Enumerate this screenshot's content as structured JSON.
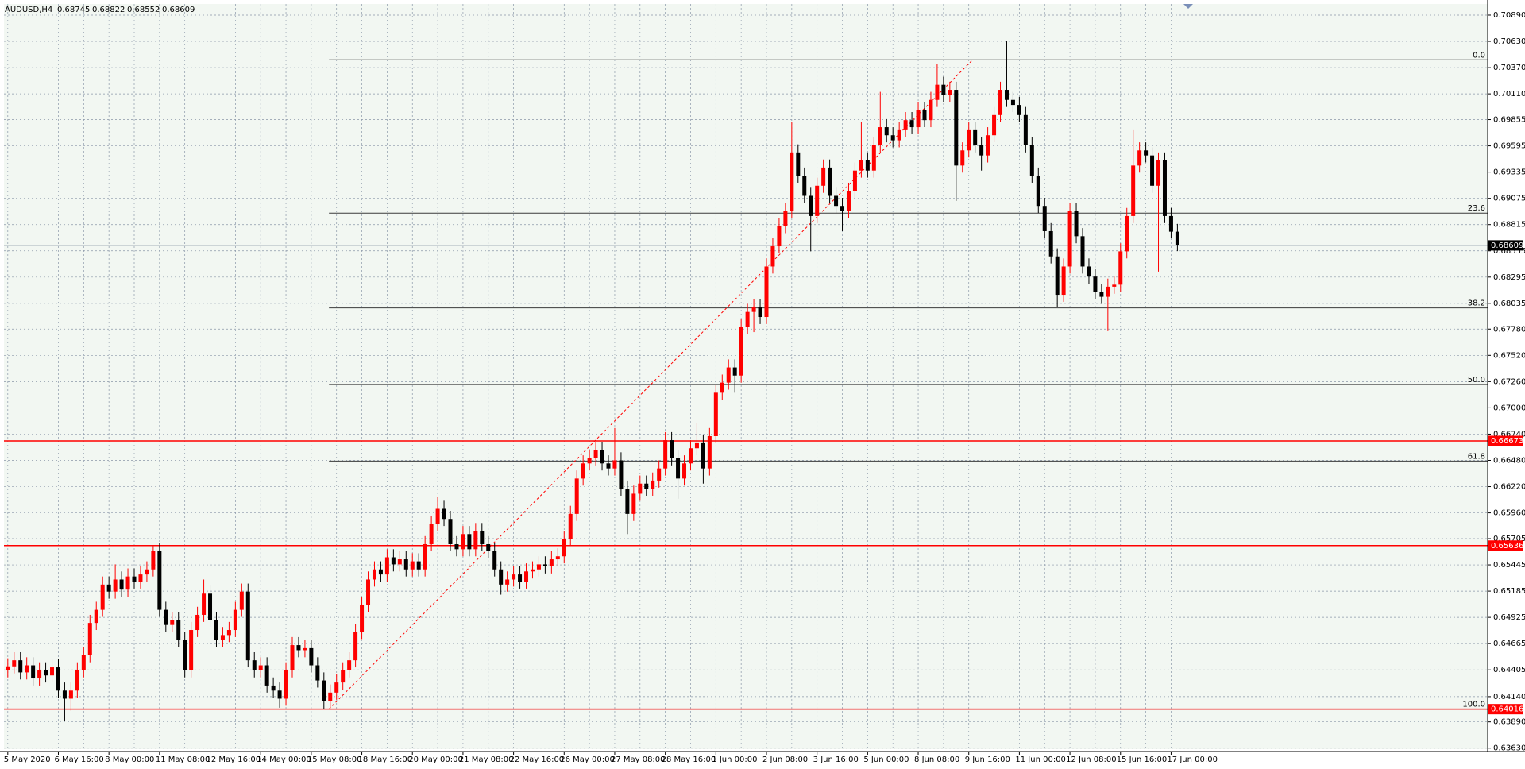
{
  "chart_data": {
    "type": "candlestick",
    "symbol": "AUDUSD,H4",
    "background": "#f2f7f2",
    "grid": true,
    "grid_color": "#8a97a8",
    "bull_color": "#ff0000",
    "bear_color": "#000000",
    "categories": [
      "5 May 2020",
      null,
      null,
      null,
      null,
      null,
      null,
      null,
      "6 May 16:00",
      null,
      null,
      null,
      null,
      null,
      null,
      null,
      "8 May 00:00",
      null,
      null,
      null,
      null,
      null,
      null,
      null,
      "11 May 08:00",
      null,
      null,
      null,
      null,
      null,
      null,
      null,
      "12 May 16:00",
      null,
      null,
      null,
      null,
      null,
      null,
      null,
      "14 May 00:00",
      null,
      null,
      null,
      null,
      null,
      null,
      null,
      "15 May 08:00",
      null,
      null,
      null,
      null,
      null,
      null,
      null,
      "18 May 16:00",
      null,
      null,
      null,
      null,
      null,
      null,
      null,
      "20 May 00:00",
      null,
      null,
      null,
      null,
      null,
      null,
      null,
      "21 May 08:00",
      null,
      null,
      null,
      null,
      null,
      null,
      null,
      "22 May 16:00",
      null,
      null,
      null,
      null,
      null,
      null,
      null,
      "26 May 00:00",
      null,
      null,
      null,
      null,
      null,
      null,
      null,
      "27 May 08:00",
      null,
      null,
      null,
      null,
      null,
      null,
      null,
      "28 May 16:00",
      null,
      null,
      null,
      null,
      null,
      null,
      null,
      "1 Jun 00:00",
      null,
      null,
      null,
      null,
      null,
      null,
      null,
      "2 Jun 08:00",
      null,
      null,
      null,
      null,
      null,
      null,
      null,
      "3 Jun 16:00",
      null,
      null,
      null,
      null,
      null,
      null,
      null,
      "5 Jun 00:00",
      null,
      null,
      null,
      null,
      null,
      null,
      null,
      "8 Jun 08:00",
      null,
      null,
      null,
      null,
      null,
      null,
      null,
      "9 Jun 16:00",
      null,
      null,
      null,
      null,
      null,
      null,
      null,
      "11 Jun 00:00",
      null,
      null,
      null,
      null,
      null,
      null,
      null,
      "12 Jun 08:00",
      null,
      null,
      null,
      null,
      null,
      null,
      null,
      "15 Jun 16:00",
      null,
      null,
      null,
      null,
      null,
      null,
      null,
      "17 Jun 00:00",
      null
    ],
    "ohlc": [
      [
        0.644,
        0.6452,
        0.6433,
        0.6444
      ],
      [
        0.6444,
        0.6458,
        0.6437,
        0.645
      ],
      [
        0.645,
        0.6458,
        0.6431,
        0.6438
      ],
      [
        0.6438,
        0.6453,
        0.6431,
        0.6445
      ],
      [
        0.6445,
        0.6453,
        0.6425,
        0.6432
      ],
      [
        0.6432,
        0.6448,
        0.6425,
        0.644
      ],
      [
        0.644,
        0.6448,
        0.6428,
        0.6435
      ],
      [
        0.6435,
        0.6451,
        0.6428,
        0.6443
      ],
      [
        0.6443,
        0.6451,
        0.6413,
        0.642
      ],
      [
        0.642,
        0.6428,
        0.639,
        0.6412
      ],
      [
        0.6412,
        0.6428,
        0.64,
        0.642
      ],
      [
        0.642,
        0.6448,
        0.6413,
        0.644
      ],
      [
        0.644,
        0.6463,
        0.6433,
        0.6455
      ],
      [
        0.6455,
        0.6495,
        0.6448,
        0.6487
      ],
      [
        0.6487,
        0.6508,
        0.648,
        0.65
      ],
      [
        0.65,
        0.6533,
        0.6493,
        0.6525
      ],
      [
        0.6525,
        0.6533,
        0.6511,
        0.6518
      ],
      [
        0.6518,
        0.6545,
        0.6511,
        0.653
      ],
      [
        0.653,
        0.6538,
        0.6513,
        0.652
      ],
      [
        0.652,
        0.6541,
        0.6513,
        0.6533
      ],
      [
        0.6533,
        0.6541,
        0.6521,
        0.6528
      ],
      [
        0.6528,
        0.6543,
        0.6521,
        0.6535
      ],
      [
        0.6535,
        0.6548,
        0.6528,
        0.654
      ],
      [
        0.654,
        0.6563,
        0.6533,
        0.6558
      ],
      [
        0.6558,
        0.6566,
        0.6493,
        0.65
      ],
      [
        0.65,
        0.6508,
        0.6478,
        0.6485
      ],
      [
        0.6485,
        0.6498,
        0.6478,
        0.649
      ],
      [
        0.649,
        0.6498,
        0.6463,
        0.647
      ],
      [
        0.647,
        0.6478,
        0.6433,
        0.644
      ],
      [
        0.644,
        0.6488,
        0.6433,
        0.648
      ],
      [
        0.648,
        0.6503,
        0.6473,
        0.6495
      ],
      [
        0.6495,
        0.653,
        0.6488,
        0.6516
      ],
      [
        0.6516,
        0.6524,
        0.6483,
        0.649
      ],
      [
        0.649,
        0.6498,
        0.6463,
        0.647
      ],
      [
        0.647,
        0.6483,
        0.6463,
        0.6475
      ],
      [
        0.6475,
        0.6488,
        0.6468,
        0.648
      ],
      [
        0.648,
        0.6508,
        0.6473,
        0.65
      ],
      [
        0.65,
        0.6526,
        0.6493,
        0.6518
      ],
      [
        0.6518,
        0.6526,
        0.6443,
        0.645
      ],
      [
        0.645,
        0.6458,
        0.6433,
        0.644
      ],
      [
        0.644,
        0.6453,
        0.6433,
        0.6445
      ],
      [
        0.6445,
        0.6453,
        0.6418,
        0.6425
      ],
      [
        0.6425,
        0.6433,
        0.6413,
        0.642
      ],
      [
        0.642,
        0.6428,
        0.6403,
        0.6412
      ],
      [
        0.6412,
        0.6448,
        0.6405,
        0.644
      ],
      [
        0.644,
        0.6473,
        0.6433,
        0.6465
      ],
      [
        0.6465,
        0.6473,
        0.6453,
        0.646
      ],
      [
        0.646,
        0.647,
        0.6453,
        0.6462
      ],
      [
        0.6462,
        0.647,
        0.6438,
        0.6445
      ],
      [
        0.6445,
        0.6453,
        0.6423,
        0.643
      ],
      [
        0.643,
        0.6438,
        0.6402,
        0.641
      ],
      [
        0.641,
        0.6426,
        0.6403,
        0.6418
      ],
      [
        0.6418,
        0.6436,
        0.6411,
        0.6428
      ],
      [
        0.6428,
        0.6448,
        0.6421,
        0.644
      ],
      [
        0.644,
        0.6458,
        0.6433,
        0.645
      ],
      [
        0.645,
        0.6486,
        0.6443,
        0.6478
      ],
      [
        0.6478,
        0.6513,
        0.6471,
        0.6505
      ],
      [
        0.6505,
        0.6538,
        0.6498,
        0.653
      ],
      [
        0.653,
        0.6548,
        0.6523,
        0.654
      ],
      [
        0.654,
        0.6548,
        0.6528,
        0.6535
      ],
      [
        0.6535,
        0.656,
        0.6528,
        0.6552
      ],
      [
        0.6552,
        0.656,
        0.6538,
        0.6545
      ],
      [
        0.6545,
        0.6558,
        0.6538,
        0.655
      ],
      [
        0.655,
        0.6558,
        0.6533,
        0.654
      ],
      [
        0.654,
        0.6556,
        0.6533,
        0.6548
      ],
      [
        0.6548,
        0.6556,
        0.6533,
        0.654
      ],
      [
        0.654,
        0.6573,
        0.6533,
        0.6565
      ],
      [
        0.6565,
        0.6593,
        0.6558,
        0.6585
      ],
      [
        0.6585,
        0.6612,
        0.6578,
        0.66
      ],
      [
        0.66,
        0.6608,
        0.6583,
        0.659
      ],
      [
        0.659,
        0.6598,
        0.6558,
        0.6565
      ],
      [
        0.6565,
        0.6573,
        0.6553,
        0.656
      ],
      [
        0.656,
        0.6583,
        0.6553,
        0.6575
      ],
      [
        0.6575,
        0.6583,
        0.6553,
        0.656
      ],
      [
        0.656,
        0.6586,
        0.6553,
        0.6578
      ],
      [
        0.6578,
        0.6586,
        0.6558,
        0.6565
      ],
      [
        0.6565,
        0.6573,
        0.6551,
        0.6558
      ],
      [
        0.6558,
        0.6566,
        0.6533,
        0.654
      ],
      [
        0.654,
        0.6548,
        0.6515,
        0.6525
      ],
      [
        0.6525,
        0.6538,
        0.6518,
        0.653
      ],
      [
        0.653,
        0.6543,
        0.6523,
        0.6535
      ],
      [
        0.6535,
        0.6543,
        0.6521,
        0.6528
      ],
      [
        0.6528,
        0.6546,
        0.6521,
        0.6538
      ],
      [
        0.6538,
        0.6548,
        0.6531,
        0.654
      ],
      [
        0.654,
        0.6553,
        0.6533,
        0.6545
      ],
      [
        0.6545,
        0.6553,
        0.6536,
        0.6543
      ],
      [
        0.6543,
        0.6558,
        0.6536,
        0.655
      ],
      [
        0.655,
        0.6561,
        0.6543,
        0.6553
      ],
      [
        0.6553,
        0.6578,
        0.6546,
        0.657
      ],
      [
        0.657,
        0.6603,
        0.6563,
        0.6595
      ],
      [
        0.6595,
        0.6638,
        0.6588,
        0.663
      ],
      [
        0.663,
        0.6653,
        0.6623,
        0.6645
      ],
      [
        0.6645,
        0.6658,
        0.6638,
        0.665
      ],
      [
        0.665,
        0.6666,
        0.6643,
        0.6658
      ],
      [
        0.6658,
        0.6666,
        0.6638,
        0.6645
      ],
      [
        0.6645,
        0.6653,
        0.6633,
        0.664
      ],
      [
        0.664,
        0.668,
        0.6633,
        0.6648
      ],
      [
        0.6648,
        0.6656,
        0.6613,
        0.662
      ],
      [
        0.662,
        0.6628,
        0.6575,
        0.6595
      ],
      [
        0.6595,
        0.6623,
        0.6588,
        0.6615
      ],
      [
        0.6615,
        0.6633,
        0.6608,
        0.6625
      ],
      [
        0.6625,
        0.6633,
        0.6613,
        0.662
      ],
      [
        0.662,
        0.6636,
        0.6613,
        0.6628
      ],
      [
        0.6628,
        0.6648,
        0.6621,
        0.664
      ],
      [
        0.664,
        0.6676,
        0.6633,
        0.6668
      ],
      [
        0.6668,
        0.6676,
        0.6643,
        0.665
      ],
      [
        0.665,
        0.6658,
        0.661,
        0.663
      ],
      [
        0.663,
        0.6653,
        0.6623,
        0.6645
      ],
      [
        0.6645,
        0.6668,
        0.6638,
        0.666
      ],
      [
        0.666,
        0.6685,
        0.6653,
        0.6665
      ],
      [
        0.6665,
        0.6673,
        0.6625,
        0.664
      ],
      [
        0.664,
        0.668,
        0.6633,
        0.6672
      ],
      [
        0.6672,
        0.6723,
        0.6665,
        0.6715
      ],
      [
        0.6715,
        0.6733,
        0.6708,
        0.6725
      ],
      [
        0.6725,
        0.6748,
        0.6718,
        0.674
      ],
      [
        0.674,
        0.6748,
        0.6715,
        0.6732
      ],
      [
        0.6732,
        0.6788,
        0.6725,
        0.678
      ],
      [
        0.678,
        0.6803,
        0.6773,
        0.6795
      ],
      [
        0.6795,
        0.6808,
        0.6775,
        0.68
      ],
      [
        0.68,
        0.6808,
        0.6783,
        0.679
      ],
      [
        0.679,
        0.6848,
        0.6783,
        0.684
      ],
      [
        0.684,
        0.6868,
        0.6833,
        0.686
      ],
      [
        0.686,
        0.6888,
        0.6853,
        0.688
      ],
      [
        0.688,
        0.6903,
        0.6873,
        0.6895
      ],
      [
        0.6895,
        0.6983,
        0.6888,
        0.6953
      ],
      [
        0.6953,
        0.6961,
        0.6923,
        0.693
      ],
      [
        0.693,
        0.6938,
        0.6903,
        0.691
      ],
      [
        0.691,
        0.6918,
        0.6855,
        0.689
      ],
      [
        0.689,
        0.6928,
        0.6883,
        0.692
      ],
      [
        0.692,
        0.6946,
        0.6913,
        0.6938
      ],
      [
        0.6938,
        0.6946,
        0.6903,
        0.691
      ],
      [
        0.691,
        0.6918,
        0.6893,
        0.69
      ],
      [
        0.69,
        0.6908,
        0.6875,
        0.6895
      ],
      [
        0.6895,
        0.6923,
        0.6888,
        0.6915
      ],
      [
        0.6915,
        0.6943,
        0.6908,
        0.6935
      ],
      [
        0.6935,
        0.6983,
        0.6928,
        0.6945
      ],
      [
        0.6945,
        0.6953,
        0.6928,
        0.6935
      ],
      [
        0.6935,
        0.6968,
        0.6928,
        0.696
      ],
      [
        0.696,
        0.7013,
        0.6953,
        0.6978
      ],
      [
        0.6978,
        0.6986,
        0.6963,
        0.697
      ],
      [
        0.697,
        0.6978,
        0.6958,
        0.6965
      ],
      [
        0.6965,
        0.6983,
        0.6958,
        0.6975
      ],
      [
        0.6975,
        0.6993,
        0.6968,
        0.6985
      ],
      [
        0.6985,
        0.6993,
        0.6971,
        0.6978
      ],
      [
        0.6978,
        0.7003,
        0.6971,
        0.6995
      ],
      [
        0.6995,
        0.7003,
        0.6978,
        0.6985
      ],
      [
        0.6985,
        0.7013,
        0.6978,
        0.7005
      ],
      [
        0.7005,
        0.7041,
        0.6998,
        0.702
      ],
      [
        0.702,
        0.7028,
        0.7003,
        0.701
      ],
      [
        0.701,
        0.7023,
        0.7003,
        0.7015
      ],
      [
        0.7015,
        0.7023,
        0.6905,
        0.694
      ],
      [
        0.694,
        0.6963,
        0.6933,
        0.6955
      ],
      [
        0.6955,
        0.6983,
        0.6948,
        0.6975
      ],
      [
        0.6975,
        0.6983,
        0.6953,
        0.696
      ],
      [
        0.696,
        0.6968,
        0.6935,
        0.695
      ],
      [
        0.695,
        0.6978,
        0.6943,
        0.697
      ],
      [
        0.697,
        0.6998,
        0.6963,
        0.699
      ],
      [
        0.699,
        0.7023,
        0.6983,
        0.7015
      ],
      [
        0.7015,
        0.7063,
        0.6998,
        0.7005
      ],
      [
        0.7005,
        0.7013,
        0.6993,
        0.7
      ],
      [
        0.7,
        0.7008,
        0.6983,
        0.699
      ],
      [
        0.699,
        0.6998,
        0.6953,
        0.696
      ],
      [
        0.696,
        0.6968,
        0.6923,
        0.693
      ],
      [
        0.693,
        0.6938,
        0.6893,
        0.69
      ],
      [
        0.69,
        0.6908,
        0.6868,
        0.6875
      ],
      [
        0.6875,
        0.6883,
        0.6843,
        0.685
      ],
      [
        0.685,
        0.6858,
        0.68,
        0.6812
      ],
      [
        0.6812,
        0.6848,
        0.6805,
        0.684
      ],
      [
        0.684,
        0.6903,
        0.6833,
        0.6895
      ],
      [
        0.6895,
        0.6903,
        0.6863,
        0.687
      ],
      [
        0.687,
        0.6878,
        0.6833,
        0.684
      ],
      [
        0.684,
        0.6848,
        0.6823,
        0.683
      ],
      [
        0.683,
        0.6838,
        0.6808,
        0.6815
      ],
      [
        0.6815,
        0.6823,
        0.6803,
        0.681
      ],
      [
        0.681,
        0.6828,
        0.6776,
        0.682
      ],
      [
        0.682,
        0.683,
        0.6813,
        0.6822
      ],
      [
        0.6822,
        0.6863,
        0.6815,
        0.6855
      ],
      [
        0.6855,
        0.6898,
        0.6848,
        0.689
      ],
      [
        0.689,
        0.6975,
        0.6883,
        0.694
      ],
      [
        0.694,
        0.6963,
        0.6933,
        0.6955
      ],
      [
        0.6955,
        0.6963,
        0.6943,
        0.695
      ],
      [
        0.695,
        0.6958,
        0.6913,
        0.692
      ],
      [
        0.692,
        0.6953,
        0.6835,
        0.6945
      ],
      [
        0.6945,
        0.6953,
        0.6883,
        0.689
      ],
      [
        0.689,
        0.6898,
        0.6868,
        0.68745
      ],
      [
        0.68745,
        0.68822,
        0.68552,
        0.68609
      ]
    ],
    "ylim": [
      0.6362,
      0.71
    ],
    "yticks": [
      {
        "value": 0.7089,
        "label": "0.70890"
      },
      {
        "value": 0.7063,
        "label": "0.70630"
      },
      {
        "value": 0.7037,
        "label": "0.70370"
      },
      {
        "value": 0.7011,
        "label": "0.70110"
      },
      0.69855,
      0.69595,
      0.69335,
      0.69075,
      0.68815,
      0.68555,
      0.68295,
      0.68035,
      {
        "value": 0.6778,
        "label": "0.67780"
      },
      {
        "value": 0.6752,
        "label": "0.67520"
      },
      {
        "value": 0.6726,
        "label": "0.67260"
      },
      {
        "value": 0.67,
        "label": "0.67000"
      },
      {
        "value": 0.6674,
        "label": "0.66740"
      },
      {
        "value": 0.6648,
        "label": "0.66480"
      },
      {
        "value": 0.6622,
        "label": "0.66220"
      },
      {
        "value": 0.6596,
        "label": "0.65960"
      },
      0.65705,
      0.65445,
      0.65185,
      0.64925,
      0.64665,
      0.64405,
      {
        "value": 0.6414,
        "label": "0.64140"
      },
      {
        "value": 0.6389,
        "label": "0.63890"
      },
      {
        "value": 0.6363,
        "label": "0.63630"
      }
    ],
    "hlines": [
      {
        "value": 0.66673,
        "color": "#ff0000"
      },
      {
        "value": 0.65636,
        "color": "#ff0000"
      },
      {
        "value": 0.64016,
        "color": "#ff0000"
      }
    ],
    "current_line_color": "#8e9aa8",
    "fibonacci": {
      "color": "#3a3a3a",
      "trend_color": "#ff0000",
      "levels": [
        {
          "label": "0.0",
          "value": 0.70447
        },
        {
          "label": "23.6",
          "value": 0.68929
        },
        {
          "label": "38.2",
          "value": 0.6799
        },
        {
          "label": "50.0",
          "value": 0.67232
        },
        {
          "label": "61.8",
          "value": 0.66473
        },
        {
          "label": "100.0",
          "value": 0.64016
        }
      ]
    }
  }
}
